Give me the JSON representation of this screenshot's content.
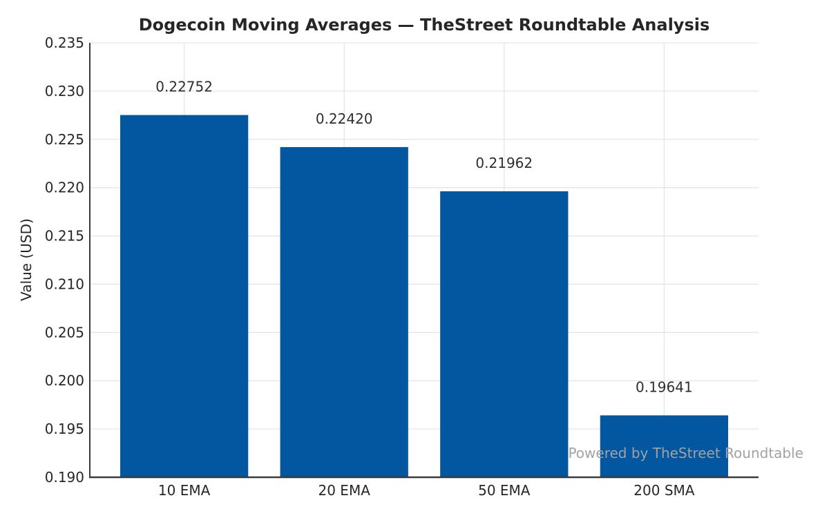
{
  "chart_data": {
    "type": "bar",
    "title": "Dogecoin Moving Averages — TheStreet Roundtable Analysis",
    "xlabel": "",
    "ylabel": "Value (USD)",
    "categories": [
      "10 EMA",
      "20 EMA",
      "50 EMA",
      "200 SMA"
    ],
    "values": [
      0.22752,
      0.2242,
      0.21962,
      0.19641
    ],
    "value_labels": [
      "0.22752",
      "0.22420",
      "0.21962",
      "0.19641"
    ],
    "ylim": [
      0.19,
      0.235
    ],
    "yticks": [
      0.19,
      0.195,
      0.2,
      0.205,
      0.21,
      0.215,
      0.22,
      0.225,
      0.23,
      0.235
    ],
    "ytick_labels": [
      "0.190",
      "0.195",
      "0.200",
      "0.205",
      "0.210",
      "0.215",
      "0.220",
      "0.225",
      "0.230",
      "0.235"
    ],
    "grid": "both",
    "legend": "none",
    "watermark": "Powered by TheStreet Roundtable"
  },
  "colors": {
    "bar": "#0356a0",
    "grid": "#e5e5e5",
    "spine": "#3a3a3a",
    "text": "#262626",
    "value_label": "#2e2e2e",
    "watermark": "#a2a2a2",
    "background": "#ffffff"
  }
}
